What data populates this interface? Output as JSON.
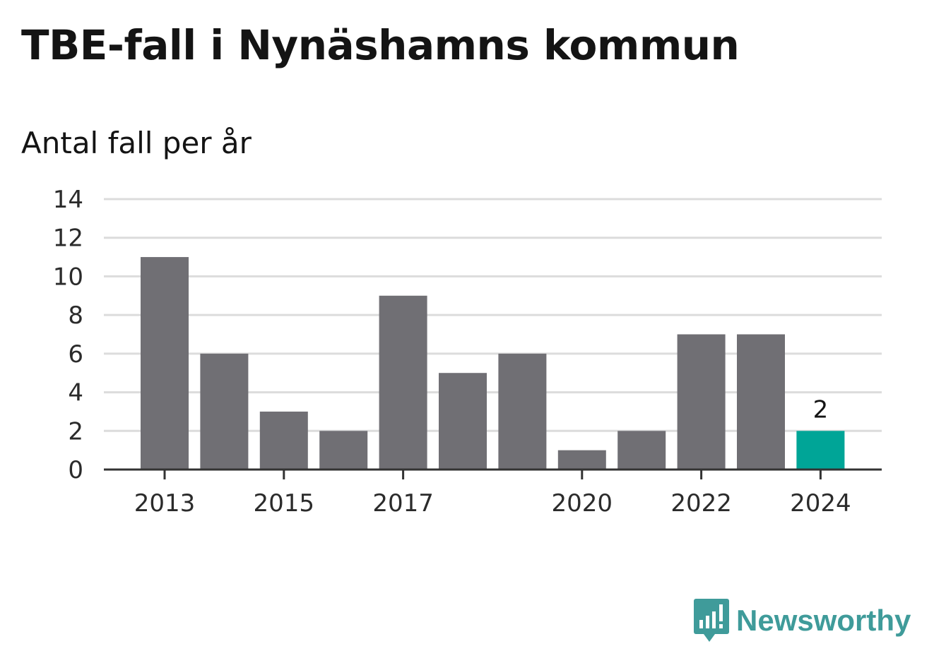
{
  "title": "TBE-fall i Nynäshamns kommun",
  "subtitle": "Antal fall per år",
  "brand": {
    "name": "Newsworthy",
    "icon": "newsworthy-logo-icon",
    "color": "#3f9b9a"
  },
  "chart_data": {
    "type": "bar",
    "categories": [
      "2013",
      "2014",
      "2015",
      "2016",
      "2017",
      "2018",
      "2019",
      "2020",
      "2021",
      "2022",
      "2023",
      "2024"
    ],
    "values": [
      11,
      6,
      3,
      2,
      9,
      5,
      6,
      1,
      2,
      7,
      7,
      2
    ],
    "x_tick_labels": [
      "2013",
      "2015",
      "2017",
      "2020",
      "2022",
      "2024"
    ],
    "y_ticks": [
      0,
      2,
      4,
      6,
      8,
      10,
      12,
      14
    ],
    "ylim": [
      0,
      14
    ],
    "grid": true,
    "bar_color": "#706f74",
    "highlight_color": "#00a597",
    "highlight_index": 11,
    "data_labels": [
      {
        "index": 11,
        "text": "2"
      }
    ]
  }
}
